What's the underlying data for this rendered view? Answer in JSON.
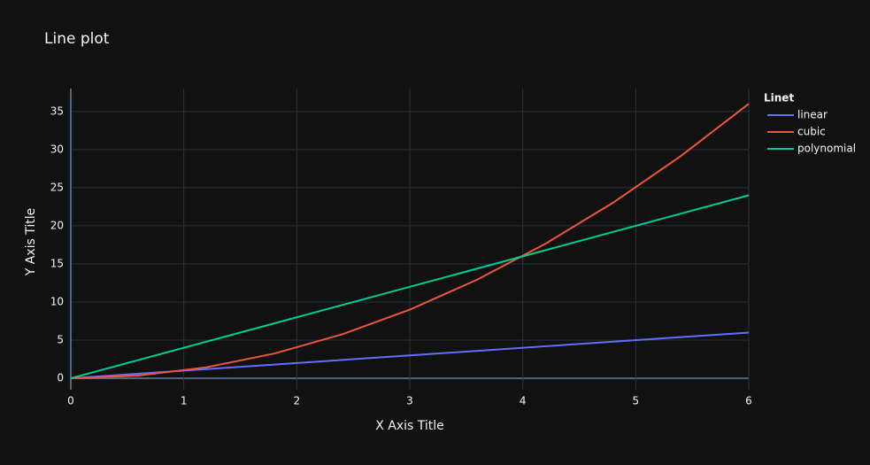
{
  "chart_data": {
    "type": "line",
    "title": "Line plot",
    "xlabel": "X Axis Title",
    "ylabel": "Y Axis Title",
    "legend_title": "Linet",
    "legend_position": "right",
    "grid": true,
    "x": [
      0,
      0.6,
      1.2,
      1.8,
      2.4,
      3,
      3.6,
      4.2,
      4.8,
      5.4,
      6
    ],
    "series": [
      {
        "name": "linear",
        "color": "#636efa",
        "values": [
          0,
          0.6,
          1.2,
          1.8,
          2.4,
          3,
          3.6,
          4.2,
          4.8,
          5.4,
          6
        ]
      },
      {
        "name": "cubic",
        "color": "#ef553b",
        "values": [
          0,
          0.36,
          1.44,
          3.24,
          5.76,
          9,
          12.96,
          17.64,
          23.04,
          29.16,
          36
        ]
      },
      {
        "name": "polynomial",
        "color": "#00cc96",
        "values": [
          0,
          2.4,
          4.8,
          7.2,
          9.6,
          12,
          14.4,
          16.8,
          19.2,
          21.6,
          24
        ]
      }
    ],
    "xlim": [
      0,
      6
    ],
    "xticks": [
      0,
      1,
      2,
      3,
      4,
      5,
      6
    ],
    "ylim": [
      -1.5,
      38
    ],
    "yticks": [
      0,
      5,
      10,
      15,
      20,
      25,
      30,
      35
    ]
  }
}
